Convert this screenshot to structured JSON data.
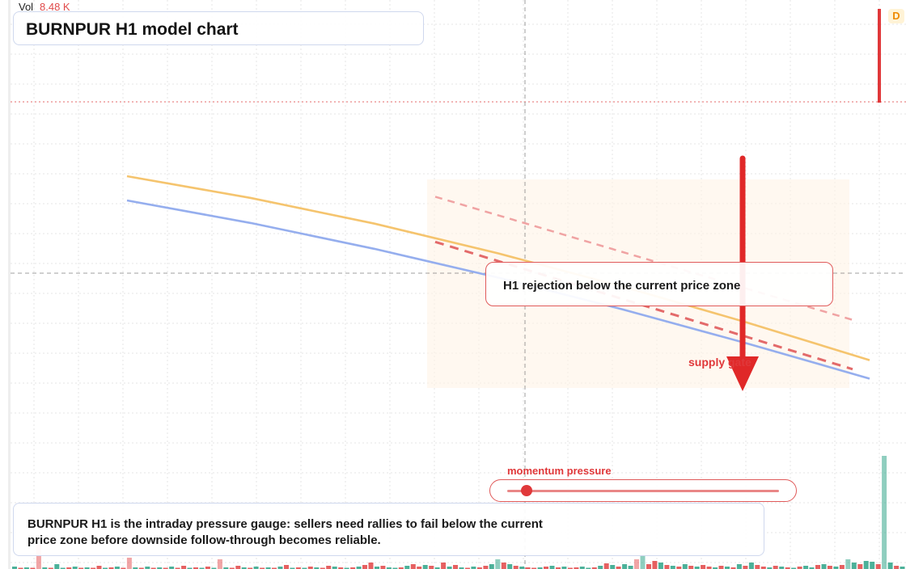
{
  "header": {
    "vol_label": "Vol",
    "vol_value": "8.48 K",
    "title": "BURNPUR H1 model chart",
    "badge": "D"
  },
  "annotations": {
    "callout": "H1 rejection below the current price zone",
    "zone_label": "supply gate",
    "gauge_title": "momentum pressure",
    "gauge_level": 0.07,
    "description": "BURNPUR H1 is the intraday pressure gauge: sellers need rallies to fail below the current price zone before downside follow-through becomes reliable."
  },
  "colors": {
    "bearish": "#e0383a",
    "bullish": "#1f9e80",
    "ma_fast": "#f5c46e",
    "ma_slow": "#95aeee",
    "supply_zone": "#fff3e6"
  },
  "chart_data": {
    "type": "line",
    "title": "BURNPUR H1 model chart",
    "series": [
      {
        "values": [
          100,
          89.4,
          76.9,
          62.4,
          46.3,
          28.9,
          10.4
        ]
      },
      {
        "values": [
          88.2,
          77.2,
          64.6,
          50.6,
          35.2,
          18.7,
          1.4
        ]
      }
    ],
    "overlays": [
      {
        "kind": "dashed-trendline",
        "start": [
          0,
          68
        ],
        "end": [
          1,
          6
        ]
      },
      {
        "kind": "dashed-trendline",
        "start": [
          0,
          90
        ],
        "end": [
          1,
          30
        ]
      },
      {
        "kind": "arrow",
        "direction": "down"
      }
    ],
    "volume": {
      "label": "Vol",
      "last": "8.48 K",
      "values": [
        3,
        1,
        2,
        1,
        30,
        2,
        1,
        6,
        1,
        2,
        3,
        1,
        2,
        1,
        4,
        1,
        2,
        3,
        1,
        14,
        2,
        1,
        3,
        1,
        2,
        1,
        3,
        1,
        4,
        1,
        2,
        1,
        3,
        1,
        12,
        2,
        1,
        4,
        2,
        1,
        3,
        1,
        2,
        1,
        3,
        5,
        1,
        2,
        1,
        3,
        2,
        1,
        4,
        3,
        2,
        1,
        2,
        3,
        5,
        8,
        3,
        4,
        2,
        1,
        2,
        4,
        6,
        3,
        5,
        4,
        2,
        8,
        3,
        5,
        2,
        1,
        3,
        2,
        4,
        6,
        12,
        8,
        6,
        4,
        3,
        2,
        1,
        2,
        3,
        4,
        2,
        3,
        1,
        2,
        3,
        1,
        2,
        4,
        7,
        5,
        3,
        6,
        4,
        12,
        18,
        6,
        10,
        8,
        5,
        4,
        3,
        6,
        4,
        3,
        5,
        3,
        2,
        4,
        3,
        2,
        6,
        4,
        8,
        5,
        3,
        2,
        4,
        3,
        2,
        1,
        3,
        4,
        2,
        5,
        6,
        4,
        3,
        5,
        12,
        8,
        6,
        10,
        9,
        6,
        140,
        8,
        4,
        3
      ],
      "up": [
        1,
        0,
        1,
        0,
        0,
        1,
        0,
        1,
        1,
        0,
        1,
        0,
        1,
        0,
        0,
        1,
        0,
        1,
        0,
        0,
        1,
        0,
        1,
        0,
        1,
        0,
        1,
        0,
        0,
        1,
        0,
        1,
        0,
        1,
        0,
        1,
        0,
        0,
        1,
        0,
        1,
        0,
        1,
        0,
        1,
        0,
        1,
        0,
        1,
        0,
        1,
        0,
        0,
        1,
        0,
        1,
        0,
        1,
        0,
        0,
        1,
        0,
        1,
        1,
        0,
        1,
        0,
        0,
        1,
        0,
        1,
        0,
        1,
        0,
        1,
        0,
        1,
        0,
        0,
        1,
        1,
        0,
        1,
        0,
        1,
        0,
        0,
        1,
        0,
        1,
        0,
        1,
        0,
        0,
        1,
        1,
        0,
        1,
        0,
        1,
        0,
        1,
        1,
        0,
        1,
        0,
        0,
        1,
        0,
        1,
        0,
        1,
        0,
        1,
        0,
        0,
        1,
        0,
        1,
        0,
        1,
        0,
        1,
        0,
        0,
        1,
        0,
        1,
        0,
        1,
        0,
        1,
        1,
        0,
        1,
        0,
        1,
        0,
        1,
        1,
        0,
        1,
        1,
        0,
        1,
        1,
        0,
        1
      ]
    }
  }
}
